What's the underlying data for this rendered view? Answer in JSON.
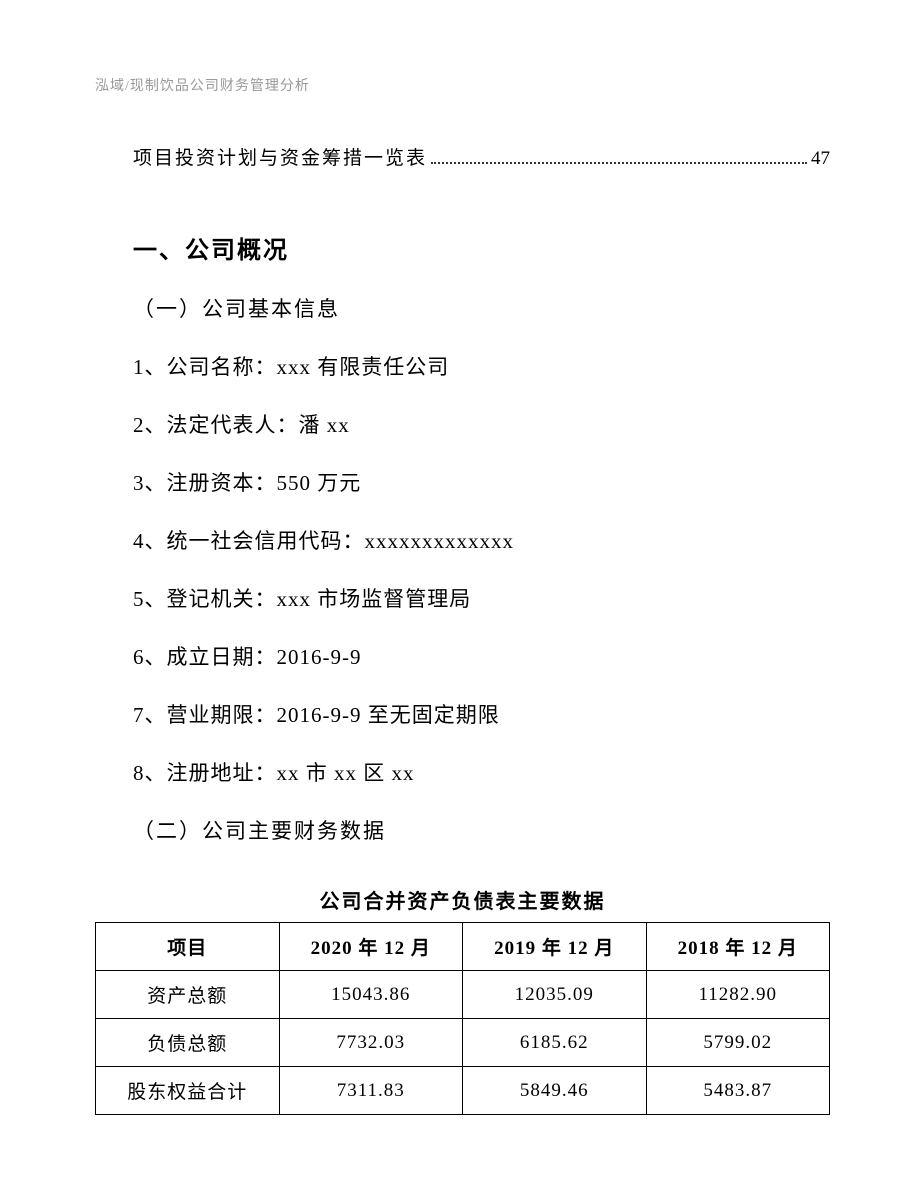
{
  "header": {
    "text": "泓域/现制饮品公司财务管理分析"
  },
  "toc": {
    "label": "项目投资计划与资金筹措一览表",
    "page": "47"
  },
  "section": {
    "heading": "一、公司概况",
    "sub1": "（一）公司基本信息",
    "info": [
      "1、公司名称：xxx 有限责任公司",
      "2、法定代表人：潘 xx",
      "3、注册资本：550 万元",
      "4、统一社会信用代码：xxxxxxxxxxxxx",
      "5、登记机关：xxx 市场监督管理局",
      "6、成立日期：2016-9-9",
      "7、营业期限：2016-9-9 至无固定期限",
      "8、注册地址：xx 市 xx 区 xx"
    ],
    "sub2": "（二）公司主要财务数据"
  },
  "table": {
    "title": "公司合并资产负债表主要数据",
    "columns": [
      "项目",
      "2020 年 12 月",
      "2019 年 12 月",
      "2018 年 12 月"
    ],
    "rows": [
      [
        "资产总额",
        "15043.86",
        "12035.09",
        "11282.90"
      ],
      [
        "负债总额",
        "7732.03",
        "6185.62",
        "5799.02"
      ],
      [
        "股东权益合计",
        "7311.83",
        "5849.46",
        "5483.87"
      ]
    ],
    "border_color": "#000000",
    "background_color": "#ffffff",
    "header_fontsize": 19,
    "cell_fontsize": 19,
    "column_widths": [
      "25%",
      "25%",
      "25%",
      "25%"
    ]
  },
  "colors": {
    "text": "#000000",
    "header_text": "#999999",
    "background": "#ffffff"
  },
  "typography": {
    "body_font": "SimSun",
    "heading_fontsize": 24,
    "subsection_fontsize": 21,
    "info_fontsize": 21,
    "header_fontsize": 14
  }
}
